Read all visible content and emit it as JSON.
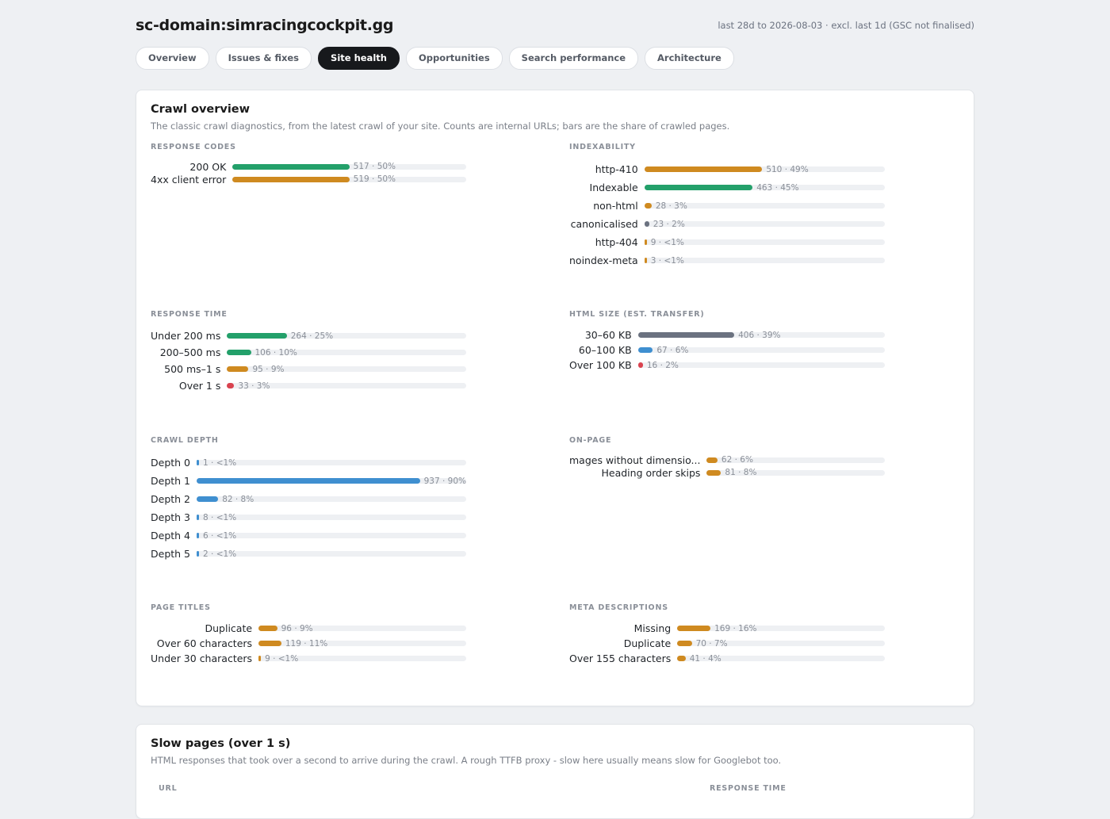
{
  "header": {
    "title": "sc-domain:simracingcockpit.gg",
    "period": "last 28d to 2026-08-03 · excl. last 1d (GSC not finalised)"
  },
  "tabs": [
    {
      "label": "Overview",
      "active": false
    },
    {
      "label": "Issues & fixes",
      "active": false
    },
    {
      "label": "Site health",
      "active": true
    },
    {
      "label": "Opportunities",
      "active": false
    },
    {
      "label": "Search performance",
      "active": false
    },
    {
      "label": "Architecture",
      "active": false
    }
  ],
  "crawl_overview": {
    "title": "Crawl overview",
    "subtitle": "The classic crawl diagnostics, from the latest crawl of your site. Counts are internal URLs; bars are the share of crawled pages.",
    "sections": [
      {
        "title": "RESPONSE CODES",
        "rows": [
          {
            "label": "200 OK",
            "share": 50,
            "value_label": "517 · 50%",
            "color": "#23a06a"
          },
          {
            "label": "4xx client error",
            "share": 50,
            "value_label": "519 · 50%",
            "color": "#cf8a20"
          }
        ]
      },
      {
        "title": "INDEXABILITY",
        "rows": [
          {
            "label": "http-410",
            "share": 49,
            "value_label": "510 · 49%",
            "color": "#cf8a20"
          },
          {
            "label": "Indexable",
            "share": 45,
            "value_label": "463 · 45%",
            "color": "#23a06a"
          },
          {
            "label": "non-html",
            "share": 3,
            "value_label": "28 · 3%",
            "color": "#cf8a20"
          },
          {
            "label": "canonicalised",
            "share": 2,
            "value_label": "23 · 2%",
            "color": "#6b7280"
          },
          {
            "label": "http-404",
            "share": 0.9,
            "value_label": "9 · <1%",
            "color": "#cf8a20"
          },
          {
            "label": "noindex-meta",
            "share": 0.3,
            "value_label": "3 · <1%",
            "color": "#cf8a20"
          }
        ]
      },
      {
        "title": "RESPONSE TIME",
        "rows": [
          {
            "label": "Under 200 ms",
            "share": 25,
            "value_label": "264 · 25%",
            "color": "#23a06a"
          },
          {
            "label": "200–500 ms",
            "share": 10,
            "value_label": "106 · 10%",
            "color": "#23a06a"
          },
          {
            "label": "500 ms–1 s",
            "share": 9,
            "value_label": "95 · 9%",
            "color": "#cf8a20"
          },
          {
            "label": "Over 1 s",
            "share": 3,
            "value_label": "33 · 3%",
            "color": "#d9434f"
          }
        ]
      },
      {
        "title": "HTML SIZE (EST. TRANSFER)",
        "rows": [
          {
            "label": "30–60 KB",
            "share": 39,
            "value_label": "406 · 39%",
            "color": "#6b7280"
          },
          {
            "label": "60–100 KB",
            "share": 6,
            "value_label": "67 · 6%",
            "color": "#3f8fd0"
          },
          {
            "label": "Over 100 KB",
            "share": 2,
            "value_label": "16 · 2%",
            "color": "#d9434f"
          }
        ]
      },
      {
        "title": "CRAWL DEPTH",
        "rows": [
          {
            "label": "Depth 0",
            "share": 0.1,
            "value_label": "1 · <1%",
            "color": "#3f8fd0"
          },
          {
            "label": "Depth 1",
            "share": 90,
            "value_label": "937 · 90%",
            "color": "#3f8fd0"
          },
          {
            "label": "Depth 2",
            "share": 8,
            "value_label": "82 · 8%",
            "color": "#3f8fd0"
          },
          {
            "label": "Depth 3",
            "share": 0.8,
            "value_label": "8 · <1%",
            "color": "#3f8fd0"
          },
          {
            "label": "Depth 4",
            "share": 0.6,
            "value_label": "6 · <1%",
            "color": "#3f8fd0"
          },
          {
            "label": "Depth 5",
            "share": 0.2,
            "value_label": "2 · <1%",
            "color": "#3f8fd0"
          }
        ]
      },
      {
        "title": "ON-PAGE",
        "rows": [
          {
            "label": "mages without dimensio...",
            "share": 6,
            "value_label": "62 · 6%",
            "color": "#cf8a20"
          },
          {
            "label": "Heading order skips",
            "share": 8,
            "value_label": "81 · 8%",
            "color": "#cf8a20"
          }
        ]
      },
      {
        "title": "PAGE TITLES",
        "rows": [
          {
            "label": "Duplicate",
            "share": 9,
            "value_label": "96 · 9%",
            "color": "#cf8a20"
          },
          {
            "label": "Over 60 characters",
            "share": 11,
            "value_label": "119 · 11%",
            "color": "#cf8a20"
          },
          {
            "label": "Under 30 characters",
            "share": 0.9,
            "value_label": "9 · <1%",
            "color": "#cf8a20"
          }
        ]
      },
      {
        "title": "META DESCRIPTIONS",
        "rows": [
          {
            "label": "Missing",
            "share": 16,
            "value_label": "169 · 16%",
            "color": "#cf8a20"
          },
          {
            "label": "Duplicate",
            "share": 7,
            "value_label": "70 · 7%",
            "color": "#cf8a20"
          },
          {
            "label": "Over 155 characters",
            "share": 4,
            "value_label": "41 · 4%",
            "color": "#cf8a20"
          }
        ]
      }
    ]
  },
  "slow_pages": {
    "title": "Slow pages (over 1 s)",
    "subtitle": "HTML responses that took over a second to arrive during the crawl. A rough TTFB proxy - slow here usually means slow for Googlebot too.",
    "columns": [
      "URL",
      "RESPONSE TIME"
    ]
  }
}
